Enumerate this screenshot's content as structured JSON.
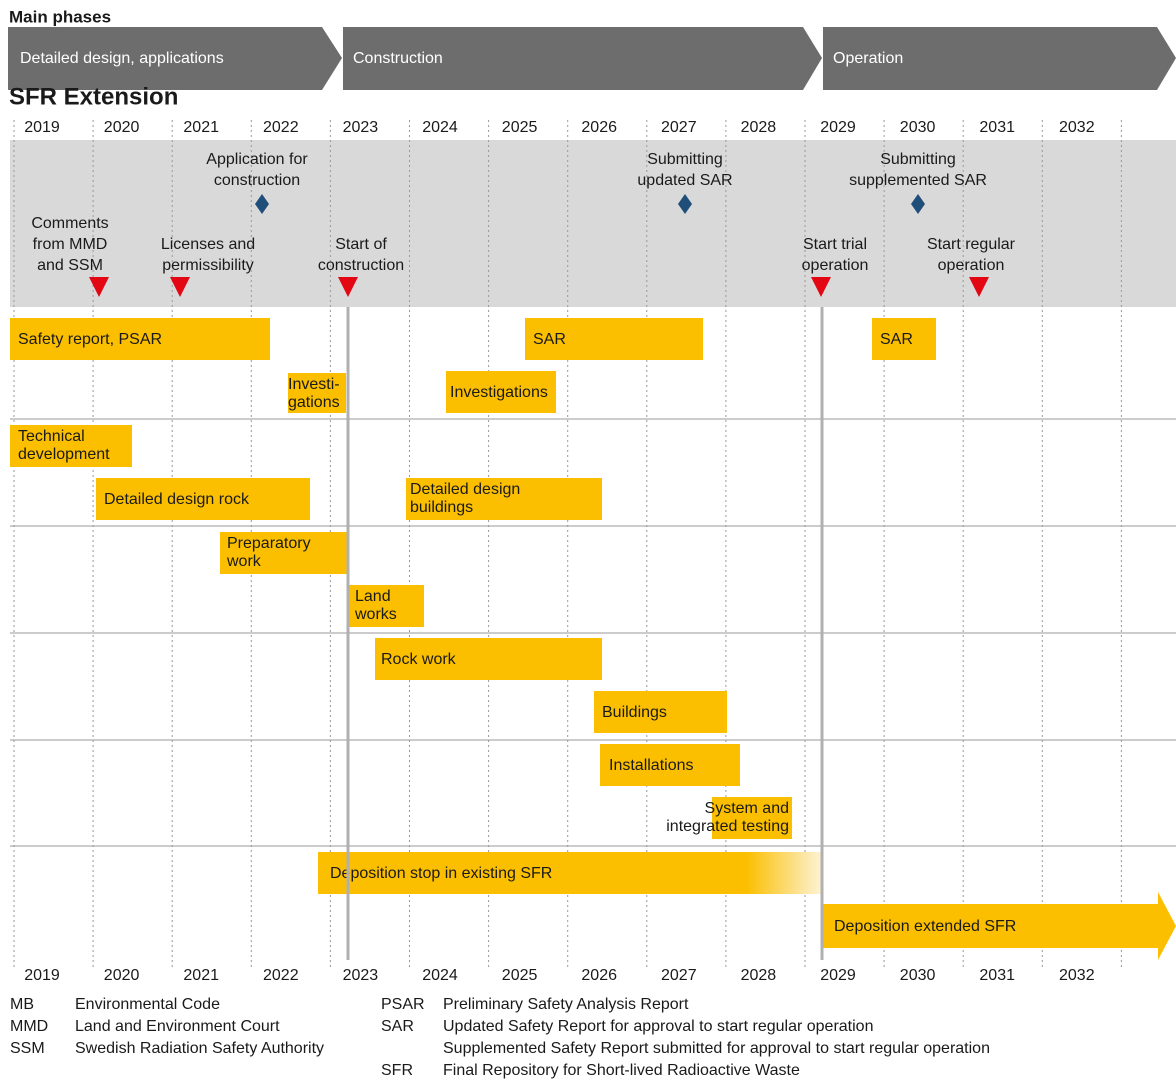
{
  "header": {
    "title": "Main phases",
    "phases": [
      "Detailed design, applications",
      "Construction",
      "Operation"
    ]
  },
  "timeline": {
    "title": "SFR Extension",
    "years": [
      "2019",
      "2020",
      "2021",
      "2022",
      "2023",
      "2024",
      "2025",
      "2026",
      "2027",
      "2028",
      "2029",
      "2030",
      "2031",
      "2032"
    ],
    "milestones": [
      {
        "lines": [
          "Application for",
          "construction"
        ]
      },
      {
        "lines": [
          "Submitting",
          "updated SAR"
        ]
      },
      {
        "lines": [
          "Submitting",
          "supplemented SAR"
        ]
      },
      {
        "lines": [
          "Comments",
          "from MMD",
          "and SSM"
        ]
      },
      {
        "lines": [
          "Licenses and",
          "permissibility"
        ]
      },
      {
        "lines": [
          "Start of",
          "construction"
        ]
      },
      {
        "lines": [
          "Start trial",
          "operation"
        ]
      },
      {
        "lines": [
          "Start regular",
          "operation"
        ]
      }
    ],
    "activities": [
      {
        "lines": [
          "Safety report, PSAR"
        ]
      },
      {
        "lines": [
          "SAR"
        ]
      },
      {
        "lines": [
          "SAR"
        ]
      },
      {
        "lines": [
          "Investi-",
          "gations"
        ]
      },
      {
        "lines": [
          "Investigations"
        ]
      },
      {
        "lines": [
          "Technical",
          "development"
        ]
      },
      {
        "lines": [
          "Detailed design rock"
        ]
      },
      {
        "lines": [
          "Detailed design",
          "buildings"
        ]
      },
      {
        "lines": [
          "Preparatory",
          "work"
        ]
      },
      {
        "lines": [
          "Land",
          "works"
        ]
      },
      {
        "lines": [
          "Rock work"
        ]
      },
      {
        "lines": [
          "Buildings"
        ]
      },
      {
        "lines": [
          "Installations"
        ]
      },
      {
        "lines": [
          "System and",
          "integrated testing"
        ]
      },
      {
        "lines": [
          "Deposition stop in existing SFR"
        ]
      },
      {
        "lines": [
          "Deposition extended SFR"
        ]
      }
    ]
  },
  "legend": {
    "left": [
      {
        "abbr": "MB",
        "lines": [
          "Environmental Code"
        ]
      },
      {
        "abbr": "MMD",
        "lines": [
          "Land and Environment Court"
        ]
      },
      {
        "abbr": "SSM",
        "lines": [
          "Swedish Radiation Safety Authority"
        ]
      }
    ],
    "right": [
      {
        "abbr": "PSAR",
        "lines": [
          "Preliminary Safety Analysis Report"
        ]
      },
      {
        "abbr": "SAR",
        "lines": [
          "Updated Safety Report for approval to start regular operation",
          "Supplemented Safety Report submitted for approval to start regular operation"
        ]
      },
      {
        "abbr": "SFR",
        "lines": [
          "Final Repository for Short-lived Radioactive Waste"
        ]
      }
    ]
  }
}
